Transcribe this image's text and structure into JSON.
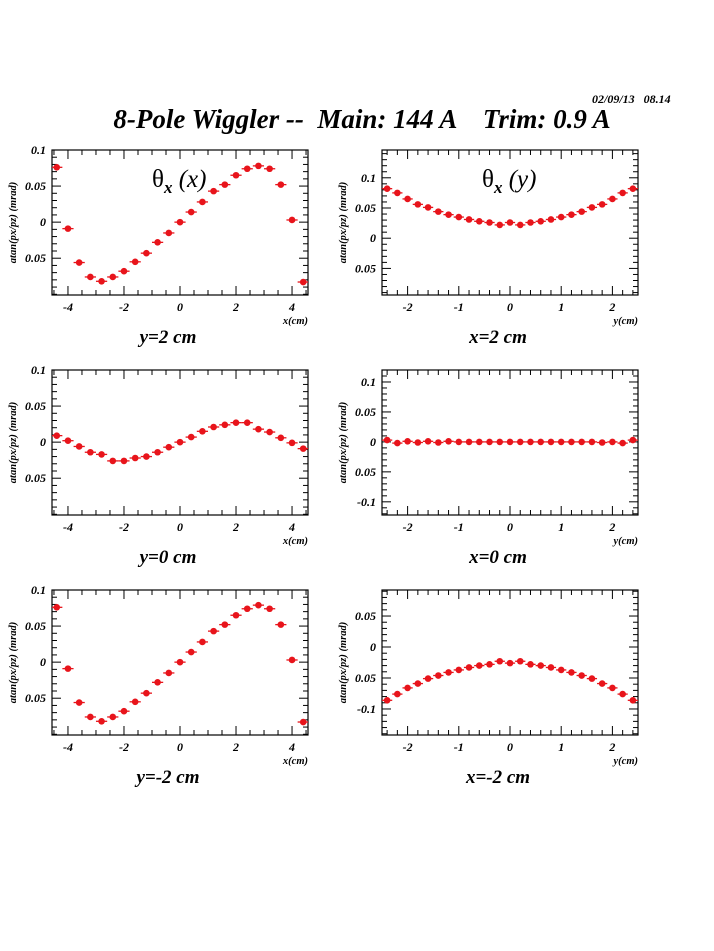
{
  "header": {
    "timestamp": "02/09/13   08.14",
    "title": "8-Pole Wiggler --  Main: 144 A    Trim: 0.9 A"
  },
  "colors": {
    "marker": "#e8141b",
    "axis": "#000000"
  },
  "chart_data": [
    {
      "type": "scatter",
      "id": "theta-x-vs-x-y2",
      "title": "",
      "inner_label": {
        "base": "θ",
        "sub": "x",
        "arg": " (x)"
      },
      "caption": "y=2 cm",
      "xlabel": "x(cm)",
      "ylabel": "atan(px/pz) (mrad)",
      "xlim": [
        -4.57,
        4.57
      ],
      "ylim": [
        -0.101,
        0.1
      ],
      "xticks": [
        -4,
        -2,
        0,
        2,
        4
      ],
      "xtick_labels": [
        "-4",
        "-2",
        "0",
        "2",
        "4"
      ],
      "yticks": [
        0.1,
        0.05,
        0,
        -0.05
      ],
      "ytick_labels": [
        "0.1",
        "0.05",
        "0",
        "0.05"
      ],
      "x_minor_step": 0.5,
      "y_minor_step": 0.01,
      "x_error": 0.2,
      "x": [
        -4.4,
        -4.0,
        -3.6,
        -3.2,
        -2.8,
        -2.4,
        -2.0,
        -1.6,
        -1.2,
        -0.8,
        -0.4,
        0.0,
        0.4,
        0.8,
        1.2,
        1.6,
        2.0,
        2.4,
        2.8,
        3.2,
        3.6,
        4.0,
        4.4
      ],
      "y": [
        0.076,
        -0.009,
        -0.056,
        -0.076,
        -0.082,
        -0.076,
        -0.068,
        -0.055,
        -0.043,
        -0.028,
        -0.015,
        0.0,
        0.014,
        0.028,
        0.043,
        0.052,
        0.065,
        0.074,
        0.078,
        0.074,
        0.052,
        0.003,
        -0.083
      ]
    },
    {
      "type": "scatter",
      "id": "theta-x-vs-y-x2",
      "title": "",
      "inner_label": {
        "base": "θ",
        "sub": "x",
        "arg": " (y)"
      },
      "caption": "x=2 cm",
      "xlabel": "y(cm)",
      "ylabel": "atan(px/pz) (mrad)",
      "xlim": [
        -2.5,
        2.5
      ],
      "ylim": [
        -0.094,
        0.146
      ],
      "xticks": [
        -2,
        -1,
        0,
        1,
        2
      ],
      "xtick_labels": [
        "-2",
        "-1",
        "0",
        "1",
        "2"
      ],
      "yticks": [
        0.1,
        0.05,
        0,
        -0.05
      ],
      "ytick_labels": [
        "0.1",
        "0.05",
        "0",
        "0.05"
      ],
      "x_minor_step": 0.2,
      "y_minor_step": 0.01,
      "x_error": 0.1,
      "x": [
        -2.4,
        -2.2,
        -2.0,
        -1.8,
        -1.6,
        -1.4,
        -1.2,
        -1.0,
        -0.8,
        -0.6,
        -0.4,
        -0.2,
        0.0,
        0.2,
        0.4,
        0.6,
        0.8,
        1.0,
        1.2,
        1.4,
        1.6,
        1.8,
        2.0,
        2.2,
        2.4
      ],
      "y": [
        0.082,
        0.075,
        0.065,
        0.056,
        0.051,
        0.044,
        0.039,
        0.035,
        0.031,
        0.028,
        0.026,
        0.022,
        0.026,
        0.022,
        0.026,
        0.028,
        0.031,
        0.035,
        0.039,
        0.044,
        0.051,
        0.056,
        0.065,
        0.075,
        0.082
      ]
    },
    {
      "type": "scatter",
      "id": "theta-x-vs-x-y0",
      "title": "",
      "inner_label": null,
      "caption": "y=0 cm",
      "xlabel": "x(cm)",
      "ylabel": "atan(px/pz) (mrad)",
      "xlim": [
        -4.57,
        4.57
      ],
      "ylim": [
        -0.101,
        0.1
      ],
      "xticks": [
        -4,
        -2,
        0,
        2,
        4
      ],
      "xtick_labels": [
        "-4",
        "-2",
        "0",
        "2",
        "4"
      ],
      "yticks": [
        0.1,
        0.05,
        0,
        -0.05
      ],
      "ytick_labels": [
        "0.1",
        "0.05",
        "0",
        "0.05"
      ],
      "x_minor_step": 0.5,
      "y_minor_step": 0.01,
      "x_error": 0.2,
      "x": [
        -4.4,
        -4.0,
        -3.6,
        -3.2,
        -2.8,
        -2.4,
        -2.0,
        -1.6,
        -1.2,
        -0.8,
        -0.4,
        0.0,
        0.4,
        0.8,
        1.2,
        1.6,
        2.0,
        2.4,
        2.8,
        3.2,
        3.6,
        4.0,
        4.4
      ],
      "y": [
        0.009,
        0.002,
        -0.006,
        -0.014,
        -0.017,
        -0.026,
        -0.026,
        -0.022,
        -0.02,
        -0.014,
        -0.007,
        0.0,
        0.007,
        0.015,
        0.021,
        0.024,
        0.027,
        0.027,
        0.018,
        0.014,
        0.006,
        -0.001,
        -0.009
      ]
    },
    {
      "type": "scatter",
      "id": "theta-x-vs-y-x0",
      "title": "",
      "inner_label": null,
      "caption": "x=0 cm",
      "xlabel": "y(cm)",
      "ylabel": "atan(px/pz) (mrad)",
      "xlim": [
        -2.5,
        2.5
      ],
      "ylim": [
        -0.122,
        0.12
      ],
      "xticks": [
        -2,
        -1,
        0,
        1,
        2
      ],
      "xtick_labels": [
        "-2",
        "-1",
        "0",
        "1",
        "2"
      ],
      "yticks": [
        0.1,
        0.05,
        0,
        -0.05,
        -0.1
      ],
      "ytick_labels": [
        "0.1",
        "0.05",
        "0",
        "0.05",
        "-0.1"
      ],
      "x_minor_step": 0.2,
      "y_minor_step": 0.01,
      "x_error": 0.1,
      "x": [
        -2.4,
        -2.2,
        -2.0,
        -1.8,
        -1.6,
        -1.4,
        -1.2,
        -1.0,
        -0.8,
        -0.6,
        -0.4,
        -0.2,
        0.0,
        0.2,
        0.4,
        0.6,
        0.8,
        1.0,
        1.2,
        1.4,
        1.6,
        1.8,
        2.0,
        2.2,
        2.4
      ],
      "y": [
        0.003,
        -0.002,
        0.001,
        -0.001,
        0.001,
        -0.001,
        0.001,
        0.0,
        0.0,
        0.0,
        0.0,
        0.0,
        0.0,
        0.0,
        0.0,
        0.0,
        0.0,
        0.0,
        0.0,
        0.0,
        0.0,
        -0.001,
        0.0,
        -0.002,
        0.003
      ]
    },
    {
      "type": "scatter",
      "id": "theta-x-vs-x-ym2",
      "title": "",
      "inner_label": null,
      "caption": "y=-2 cm",
      "xlabel": "x(cm)",
      "ylabel": "atan(px/pz) (mrad)",
      "xlim": [
        -4.57,
        4.57
      ],
      "ylim": [
        -0.101,
        0.1
      ],
      "xticks": [
        -4,
        -2,
        0,
        2,
        4
      ],
      "xtick_labels": [
        "-4",
        "-2",
        "0",
        "2",
        "4"
      ],
      "yticks": [
        0.1,
        0.05,
        0,
        -0.05
      ],
      "ytick_labels": [
        "0.1",
        "0.05",
        "0",
        "0.05"
      ],
      "x_minor_step": 0.5,
      "y_minor_step": 0.01,
      "x_error": 0.2,
      "x": [
        -4.4,
        -4.0,
        -3.6,
        -3.2,
        -2.8,
        -2.4,
        -2.0,
        -1.6,
        -1.2,
        -0.8,
        -0.4,
        0.0,
        0.4,
        0.8,
        1.2,
        1.6,
        2.0,
        2.4,
        2.8,
        3.2,
        3.6,
        4.0,
        4.4
      ],
      "y": [
        0.076,
        -0.009,
        -0.056,
        -0.076,
        -0.082,
        -0.076,
        -0.068,
        -0.055,
        -0.043,
        -0.028,
        -0.015,
        0.0,
        0.014,
        0.028,
        0.043,
        0.052,
        0.065,
        0.074,
        0.079,
        0.074,
        0.052,
        0.003,
        -0.083
      ]
    },
    {
      "type": "scatter",
      "id": "theta-x-vs-y-xm2",
      "title": "",
      "inner_label": null,
      "caption": "x=-2 cm",
      "xlabel": "y(cm)",
      "ylabel": "atan(px/pz) (mrad)",
      "xlim": [
        -2.5,
        2.5
      ],
      "ylim": [
        -0.142,
        0.092
      ],
      "xticks": [
        -2,
        -1,
        0,
        1,
        2
      ],
      "xtick_labels": [
        "-2",
        "-1",
        "0",
        "1",
        "2"
      ],
      "yticks": [
        0.05,
        0,
        -0.05,
        -0.1
      ],
      "ytick_labels": [
        "0.05",
        "0",
        "0.05",
        "-0.1"
      ],
      "x_minor_step": 0.2,
      "y_minor_step": 0.01,
      "x_error": 0.1,
      "x": [
        -2.4,
        -2.2,
        -2.0,
        -1.8,
        -1.6,
        -1.4,
        -1.2,
        -1.0,
        -0.8,
        -0.6,
        -0.4,
        -0.2,
        0.0,
        0.2,
        0.4,
        0.6,
        0.8,
        1.0,
        1.2,
        1.4,
        1.6,
        1.8,
        2.0,
        2.2,
        2.4
      ],
      "y": [
        -0.086,
        -0.076,
        -0.066,
        -0.059,
        -0.051,
        -0.046,
        -0.041,
        -0.037,
        -0.033,
        -0.03,
        -0.028,
        -0.023,
        -0.026,
        -0.023,
        -0.028,
        -0.03,
        -0.033,
        -0.037,
        -0.041,
        -0.046,
        -0.051,
        -0.059,
        -0.066,
        -0.076,
        -0.086
      ]
    }
  ]
}
